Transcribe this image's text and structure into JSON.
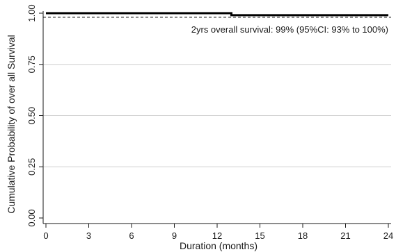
{
  "chart_data": {
    "type": "line",
    "title": "",
    "xlabel": "Duration (months)",
    "ylabel": "Cumulative  Probability of over all Survival",
    "x_ticks": [
      0,
      3,
      6,
      9,
      12,
      15,
      18,
      21,
      24
    ],
    "x_tick_labels": [
      "0",
      "3",
      "6",
      "9",
      "12",
      "15",
      "18",
      "21",
      "24"
    ],
    "y_ticks": [
      0,
      0.25,
      0.5,
      0.75,
      1.0
    ],
    "y_tick_labels": [
      "0.00",
      "0.25",
      "0.50",
      "0.75",
      "1.00"
    ],
    "xlim": [
      0,
      24
    ],
    "ylim": [
      0,
      1
    ],
    "grid": "horizontal",
    "step": true,
    "series": [
      {
        "x": [
          0,
          13,
          13,
          24
        ],
        "y": [
          1.0,
          1.0,
          0.99,
          0.99
        ],
        "color": "#000000",
        "style": "solid"
      }
    ],
    "reference_line": {
      "y": 0.98,
      "color": "#000000",
      "style": "dashed"
    },
    "annotation": "2yrs overall survival:  99% (95%CI: 93% to 100%)",
    "colors": {
      "line": "#000000",
      "grid": "#cfcfcf",
      "axis": "#1a1a1a"
    }
  }
}
